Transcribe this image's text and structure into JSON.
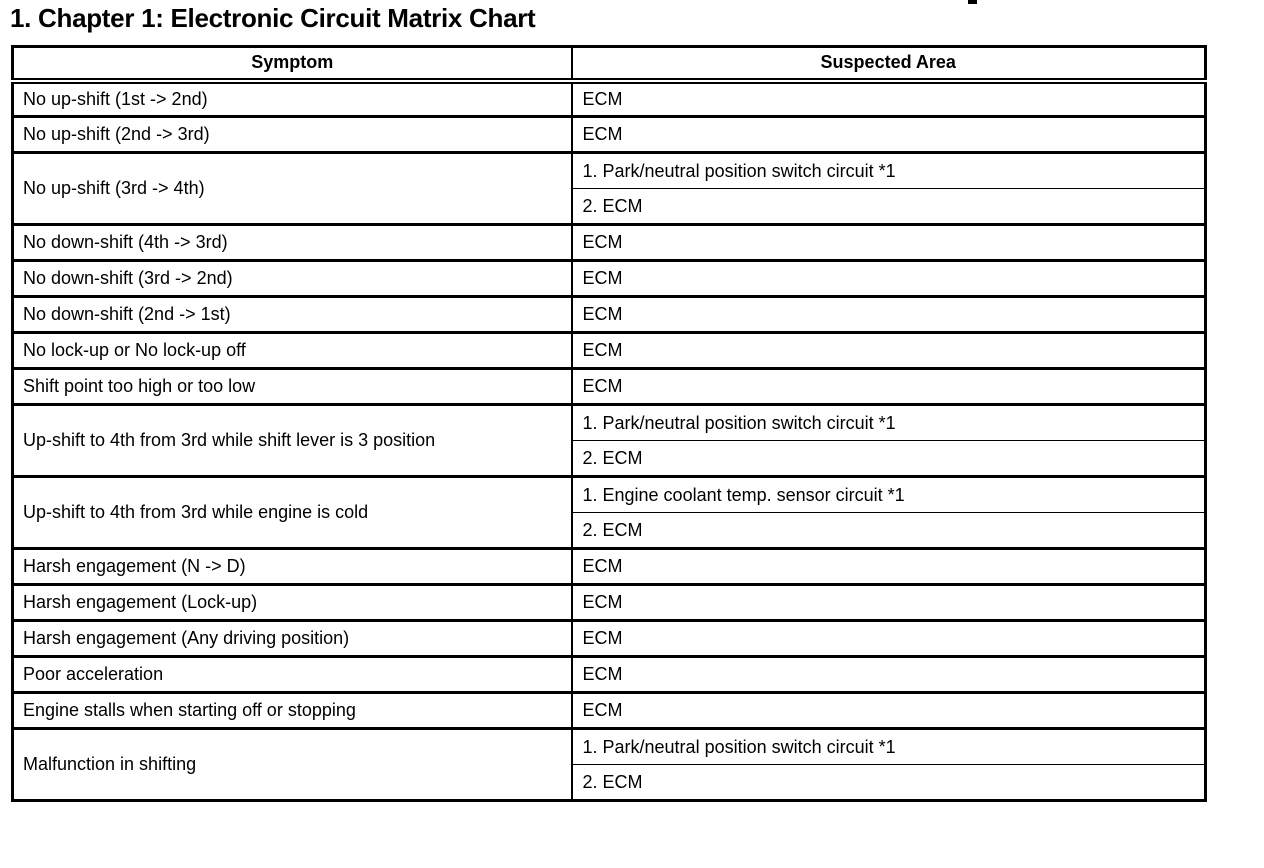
{
  "page": {
    "title": "1. Chapter 1: Electronic Circuit Matrix Chart"
  },
  "table": {
    "columns": [
      "Symptom",
      "Suspected Area"
    ],
    "rows": [
      {
        "symptom": "No up-shift (1st -> 2nd)",
        "areas": [
          "ECM"
        ]
      },
      {
        "symptom": "No up-shift (2nd -> 3rd)",
        "areas": [
          "ECM"
        ]
      },
      {
        "symptom": "No up-shift (3rd -> 4th)",
        "areas": [
          "1. Park/neutral position switch circuit *1",
          "2. ECM"
        ]
      },
      {
        "symptom": "No down-shift (4th -> 3rd)",
        "areas": [
          "ECM"
        ]
      },
      {
        "symptom": "No down-shift (3rd -> 2nd)",
        "areas": [
          "ECM"
        ]
      },
      {
        "symptom": "No down-shift (2nd -> 1st)",
        "areas": [
          "ECM"
        ]
      },
      {
        "symptom": "No lock-up or No lock-up off",
        "areas": [
          "ECM"
        ]
      },
      {
        "symptom": "Shift point too high or too low",
        "areas": [
          "ECM"
        ]
      },
      {
        "symptom": "Up-shift to 4th from 3rd while shift lever is 3 position",
        "areas": [
          "1. Park/neutral position switch circuit *1",
          "2. ECM"
        ]
      },
      {
        "symptom": "Up-shift to 4th from 3rd while engine is cold",
        "areas": [
          "1. Engine coolant temp. sensor circuit *1",
          "2. ECM"
        ]
      },
      {
        "symptom": "Harsh engagement (N -> D)",
        "areas": [
          "ECM"
        ]
      },
      {
        "symptom": "Harsh engagement (Lock-up)",
        "areas": [
          "ECM"
        ]
      },
      {
        "symptom": "Harsh engagement (Any driving position)",
        "areas": [
          "ECM"
        ]
      },
      {
        "symptom": "Poor acceleration",
        "areas": [
          "ECM"
        ]
      },
      {
        "symptom": "Engine stalls when starting off or stopping",
        "areas": [
          "ECM"
        ]
      },
      {
        "symptom": "Malfunction in shifting",
        "areas": [
          "1. Park/neutral position switch circuit *1",
          "2. ECM"
        ]
      }
    ]
  }
}
